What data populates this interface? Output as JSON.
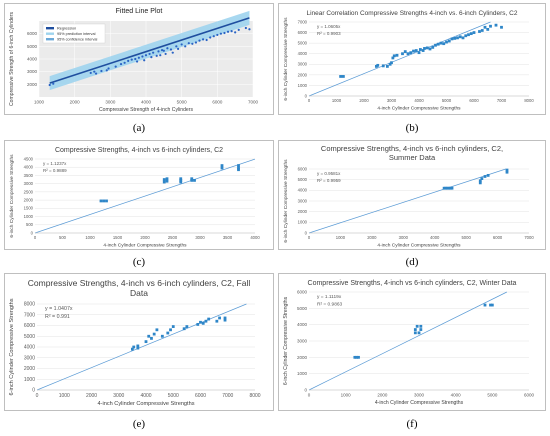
{
  "figure": {
    "labels": [
      "(a)",
      "(b)",
      "(c)",
      "(d)",
      "(e)",
      "(f)"
    ]
  },
  "chart_data": [
    {
      "id": "a",
      "type": "scatter",
      "title": "Fitted Line Plot",
      "xlabel": "Compressive Strength of 4-inch Cylinders",
      "ylabel": "Compressive Strength of 6-inch Cylinders",
      "xlim": [
        1000,
        7000
      ],
      "ylim": [
        1000,
        7000
      ],
      "xticks": [
        1000,
        2000,
        3000,
        4000,
        5000,
        6000,
        7000
      ],
      "yticks": [
        2000,
        3000,
        4000,
        5000,
        6000
      ],
      "legend": [
        "Regression",
        "95% prediction interval",
        "95% confidence interval"
      ],
      "legend_position": "top-left",
      "grid": true,
      "background": "#ebebeb",
      "band_color": "#9fd4ee",
      "line_color": "#1f4e9f",
      "point_color": "#2a63c4",
      "fit": {
        "slope": 0.92,
        "intercept": 900
      },
      "points": [
        [
          1300,
          1950
        ],
        [
          1400,
          2050
        ],
        [
          2450,
          2900
        ],
        [
          2550,
          3000
        ],
        [
          2600,
          2850
        ],
        [
          2750,
          3050
        ],
        [
          2900,
          3100
        ],
        [
          2950,
          3250
        ],
        [
          3150,
          3400
        ],
        [
          3300,
          3600
        ],
        [
          3400,
          3700
        ],
        [
          3500,
          3850
        ],
        [
          3600,
          3950
        ],
        [
          3700,
          4000
        ],
        [
          3750,
          3800
        ],
        [
          3800,
          4100
        ],
        [
          3900,
          4200
        ],
        [
          3950,
          3900
        ],
        [
          4000,
          4300
        ],
        [
          4100,
          4400
        ],
        [
          4150,
          4150
        ],
        [
          4200,
          4500
        ],
        [
          4300,
          4250
        ],
        [
          4350,
          4600
        ],
        [
          4400,
          4300
        ],
        [
          4450,
          4700
        ],
        [
          4500,
          4650
        ],
        [
          4550,
          4400
        ],
        [
          4600,
          4850
        ],
        [
          4700,
          4750
        ],
        [
          4750,
          4500
        ],
        [
          4850,
          5000
        ],
        [
          4900,
          4800
        ],
        [
          5000,
          5150
        ],
        [
          5100,
          5000
        ],
        [
          5200,
          5250
        ],
        [
          5300,
          5200
        ],
        [
          5400,
          5300
        ],
        [
          5500,
          5450
        ],
        [
          5600,
          5550
        ],
        [
          5700,
          5500
        ],
        [
          5800,
          5700
        ],
        [
          5900,
          5800
        ],
        [
          6000,
          5900
        ],
        [
          6100,
          6000
        ],
        [
          6200,
          6050
        ],
        [
          6300,
          6150
        ],
        [
          6400,
          6200
        ],
        [
          6500,
          6100
        ],
        [
          6600,
          6300
        ],
        [
          6800,
          6450
        ],
        [
          6900,
          6350
        ]
      ]
    },
    {
      "id": "b",
      "type": "scatter",
      "title": "Linear Correlation Compressive Strengths 4-inch vs. 6-inch Cylinders, C2",
      "xlabel": "4-inch Cylinder Compressive Strengths",
      "ylabel": "6-inch Cylinder Compressive Strengths",
      "equation": "y = 1.0605x",
      "r2": "R² = 0.9903",
      "xlim": [
        0,
        8000
      ],
      "ylim": [
        0,
        7000
      ],
      "xticks": [
        0,
        1000,
        2000,
        3000,
        4000,
        5000,
        6000,
        7000,
        8000
      ],
      "yticks": [
        0,
        1000,
        2000,
        3000,
        4000,
        5000,
        6000,
        7000
      ],
      "grid": true,
      "color": "#2e86c8",
      "fit": {
        "slope": 1.0605,
        "intercept": 0
      },
      "points": [
        [
          1150,
          1850
        ],
        [
          1250,
          1850
        ],
        [
          2450,
          2800
        ],
        [
          2500,
          2900
        ],
        [
          2700,
          2850
        ],
        [
          2850,
          2800
        ],
        [
          2950,
          3000
        ],
        [
          3000,
          3150
        ],
        [
          3050,
          3600
        ],
        [
          3100,
          3800
        ],
        [
          3200,
          3850
        ],
        [
          3400,
          4000
        ],
        [
          3500,
          4200
        ],
        [
          3600,
          4000
        ],
        [
          3700,
          4100
        ],
        [
          3800,
          4250
        ],
        [
          3900,
          4300
        ],
        [
          4000,
          4100
        ],
        [
          4050,
          4400
        ],
        [
          4150,
          4300
        ],
        [
          4200,
          4500
        ],
        [
          4300,
          4550
        ],
        [
          4400,
          4450
        ],
        [
          4500,
          4600
        ],
        [
          4600,
          4800
        ],
        [
          4700,
          4900
        ],
        [
          4800,
          5000
        ],
        [
          4900,
          4950
        ],
        [
          5000,
          5100
        ],
        [
          5100,
          5200
        ],
        [
          5200,
          5400
        ],
        [
          5300,
          5450
        ],
        [
          5400,
          5500
        ],
        [
          5500,
          5600
        ],
        [
          5600,
          5500
        ],
        [
          5700,
          5700
        ],
        [
          5800,
          5800
        ],
        [
          5900,
          5900
        ],
        [
          6000,
          6000
        ],
        [
          6200,
          6100
        ],
        [
          6300,
          6200
        ],
        [
          6400,
          6500
        ],
        [
          6500,
          6300
        ],
        [
          6600,
          6600
        ],
        [
          6800,
          6700
        ],
        [
          7000,
          6500
        ]
      ]
    },
    {
      "id": "c",
      "type": "scatter",
      "title": "Compressive Strengths, 4-inch vs 6-inch cylinders, C2",
      "xlabel": "4-inch Cylinder Compressive Strengths",
      "ylabel": "6-inch Cylinder Compressive Strengths",
      "equation": "y = 1.1237x",
      "r2": "R² = 0.9889",
      "xlim": [
        0,
        4000
      ],
      "ylim": [
        0,
        4500
      ],
      "xticks": [
        0,
        500,
        1000,
        1500,
        2000,
        2500,
        3000,
        3500,
        4000
      ],
      "yticks": [
        0,
        500,
        1000,
        1500,
        2000,
        2500,
        3000,
        3500,
        4000,
        4500
      ],
      "grid": true,
      "color": "#2e86c8",
      "fit": {
        "slope": 1.1237,
        "intercept": 0
      },
      "points": [
        [
          1200,
          1950
        ],
        [
          1250,
          1950
        ],
        [
          1300,
          1950
        ],
        [
          2350,
          3100
        ],
        [
          2350,
          3250
        ],
        [
          2400,
          3300
        ],
        [
          2400,
          3150
        ],
        [
          2650,
          3200
        ],
        [
          2650,
          3300
        ],
        [
          2650,
          3100
        ],
        [
          2850,
          3200
        ],
        [
          2850,
          3300
        ],
        [
          2900,
          3200
        ],
        [
          3400,
          3950
        ],
        [
          3400,
          4100
        ],
        [
          3700,
          3950
        ],
        [
          3700,
          4100
        ],
        [
          3700,
          3850
        ]
      ]
    },
    {
      "id": "d",
      "type": "scatter",
      "title": "Compressive Strengths, 4-inch vs 6-inch cylinders, C2, Summer Data",
      "xlabel": "4-inch Cylinder Compressive Strengths",
      "ylabel": "6-inch Cylinder Compressive Strengths",
      "equation": "y = 0.9581x",
      "r2": "R² = 0.9959",
      "xlim": [
        0,
        7000
      ],
      "ylim": [
        0,
        6000
      ],
      "xticks": [
        0,
        1000,
        2000,
        3000,
        4000,
        5000,
        6000,
        7000
      ],
      "yticks": [
        0,
        1000,
        2000,
        3000,
        4000,
        5000,
        6000
      ],
      "grid": true,
      "color": "#2e86c8",
      "fit": {
        "slope": 0.9581,
        "intercept": 0
      },
      "points": [
        [
          4300,
          4200
        ],
        [
          4350,
          4200
        ],
        [
          4400,
          4200
        ],
        [
          4450,
          4200
        ],
        [
          4500,
          4200
        ],
        [
          4550,
          4200
        ],
        [
          5450,
          4700
        ],
        [
          5450,
          4900
        ],
        [
          5500,
          5100
        ],
        [
          5600,
          5300
        ],
        [
          5700,
          5400
        ],
        [
          6300,
          5700
        ],
        [
          6300,
          5900
        ]
      ]
    },
    {
      "id": "e",
      "type": "scatter",
      "title": "Compressive Strengths, 4-inch vs 6-inch cylinders, C2, Fall Data",
      "xlabel": "4-inch Cylinder Compressive Strengths",
      "ylabel": "6-inch Cylinder Compressive Strengths",
      "equation": "y = 1.0407x",
      "r2": "R² = 0.991",
      "xlim": [
        0,
        8000
      ],
      "ylim": [
        0,
        8000
      ],
      "xticks": [
        0,
        1000,
        2000,
        3000,
        4000,
        5000,
        6000,
        7000,
        8000
      ],
      "yticks": [
        0,
        1000,
        2000,
        3000,
        4000,
        5000,
        6000,
        7000,
        8000
      ],
      "grid": true,
      "color": "#2e86c8",
      "fit": {
        "slope": 1.0407,
        "intercept": 0
      },
      "points": [
        [
          3500,
          3800
        ],
        [
          3550,
          4000
        ],
        [
          3700,
          3900
        ],
        [
          3700,
          4100
        ],
        [
          4000,
          4500
        ],
        [
          4100,
          5000
        ],
        [
          4200,
          4800
        ],
        [
          4300,
          5200
        ],
        [
          4400,
          5600
        ],
        [
          4600,
          5000
        ],
        [
          4800,
          5300
        ],
        [
          4900,
          5600
        ],
        [
          5000,
          5900
        ],
        [
          5400,
          5700
        ],
        [
          5500,
          5900
        ],
        [
          5900,
          6100
        ],
        [
          6000,
          6300
        ],
        [
          6100,
          6200
        ],
        [
          6200,
          6400
        ],
        [
          6300,
          6600
        ],
        [
          6600,
          6400
        ],
        [
          6700,
          6700
        ],
        [
          6900,
          6500
        ],
        [
          6900,
          6700
        ]
      ]
    },
    {
      "id": "f",
      "type": "scatter",
      "title": "Compressive Strengths, 4-inch vs 6-inch cylinders, C2, Winter Data",
      "xlabel": "4-inch Cylinder Compressive Strengths",
      "ylabel": "6-inch Cylinder Compressive Strengths",
      "equation": "y = 1.1119x",
      "r2": "R² = 0.9863",
      "xlim": [
        0,
        6000
      ],
      "ylim": [
        0,
        6000
      ],
      "xticks": [
        0,
        1000,
        2000,
        3000,
        4000,
        5000,
        6000
      ],
      "yticks": [
        0,
        1000,
        2000,
        3000,
        4000,
        5000,
        6000
      ],
      "grid": true,
      "color": "#2e86c8",
      "fit": {
        "slope": 1.1119,
        "intercept": 0
      },
      "points": [
        [
          1250,
          2000
        ],
        [
          1300,
          2000
        ],
        [
          1350,
          2000
        ],
        [
          2900,
          3500
        ],
        [
          2900,
          3700
        ],
        [
          2950,
          3900
        ],
        [
          3000,
          3500
        ],
        [
          3050,
          3700
        ],
        [
          3050,
          3900
        ],
        [
          4800,
          5200
        ],
        [
          4950,
          5200
        ],
        [
          5000,
          5200
        ]
      ]
    }
  ]
}
